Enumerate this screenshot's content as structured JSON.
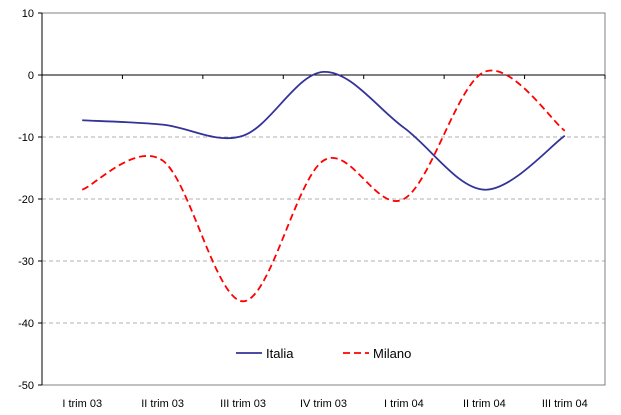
{
  "chart_data": {
    "type": "line",
    "categories": [
      "I trim 03",
      "II trim 03",
      "III trim 03",
      "IV trim 03",
      "I trim 04",
      "II trim 04",
      "III trim 04"
    ],
    "series": [
      {
        "name": "Italia",
        "values": [
          -7.3,
          -8.0,
          -9.8,
          0.5,
          -8.5,
          -18.5,
          -9.8
        ],
        "color": "#333399",
        "dash": "solid"
      },
      {
        "name": "Milano",
        "values": [
          -18.5,
          -13.8,
          -36.5,
          -13.8,
          -20.0,
          0.5,
          -9.0
        ],
        "color": "#ff0000",
        "dash": "dashed"
      }
    ],
    "ylim": [
      -50,
      10
    ],
    "yticks": [
      10,
      0,
      -10,
      -20,
      -30,
      -40,
      -50
    ],
    "gridlines": true,
    "legend_position": "bottom-center"
  }
}
